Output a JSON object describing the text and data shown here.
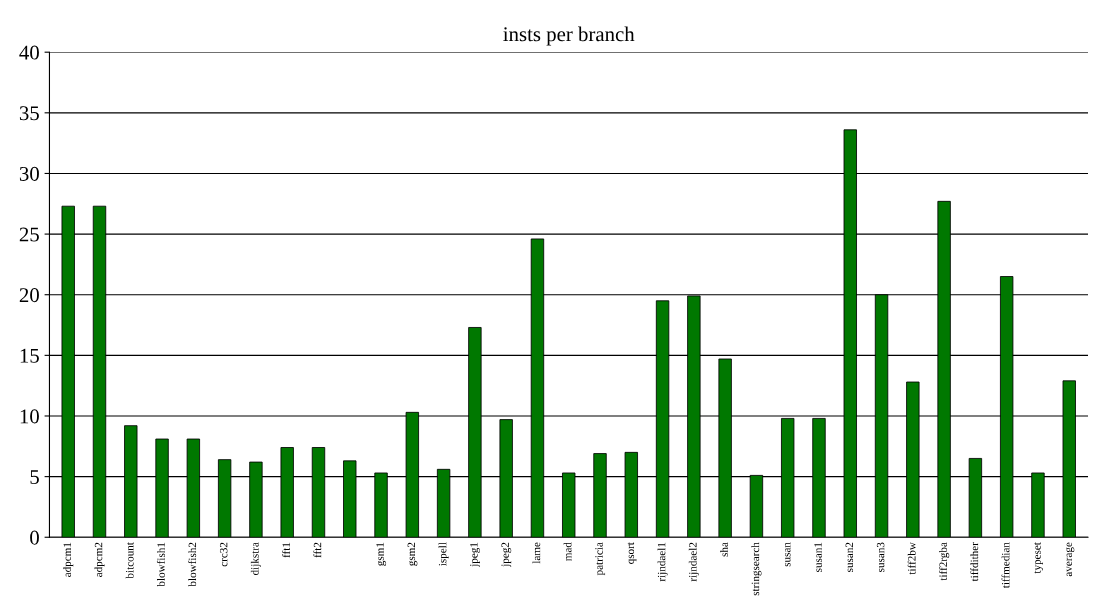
{
  "chart_data": {
    "type": "bar",
    "title": "insts per branch",
    "categories": [
      "adpcm1",
      "adpcm2",
      "bitcount",
      "blowfish1",
      "blowfish2",
      "crc32",
      "dijkstra",
      "fft1",
      "fft2",
      null,
      "gsm1",
      "gsm2",
      "ispell",
      "jpeg1",
      "jpeg2",
      "lame",
      "mad",
      "patricia",
      "qsort",
      "rijndael1",
      "rijndael2",
      "sha",
      "stringsearch",
      "susan",
      "susan1",
      "susan2",
      "susan3",
      "tiff2bw",
      "tiff2rgba",
      "tiffdither",
      "tiffmedian",
      "typeset",
      "average"
    ],
    "values": [
      27.3,
      27.3,
      9.2,
      8.1,
      8.1,
      6.4,
      6.2,
      7.4,
      7.4,
      6.3,
      5.3,
      10.3,
      5.6,
      17.3,
      9.7,
      24.6,
      5.3,
      6.9,
      7.0,
      19.5,
      19.9,
      14.7,
      5.1,
      9.8,
      9.8,
      33.6,
      20.0,
      12.8,
      27.7,
      6.5,
      21.5,
      5.3,
      12.9
    ],
    "color": "#007800",
    "ylim": [
      0,
      40
    ],
    "yticks": [
      0,
      5,
      10,
      15,
      20,
      25,
      30,
      35,
      40
    ],
    "grid": "y",
    "legend": false
  }
}
